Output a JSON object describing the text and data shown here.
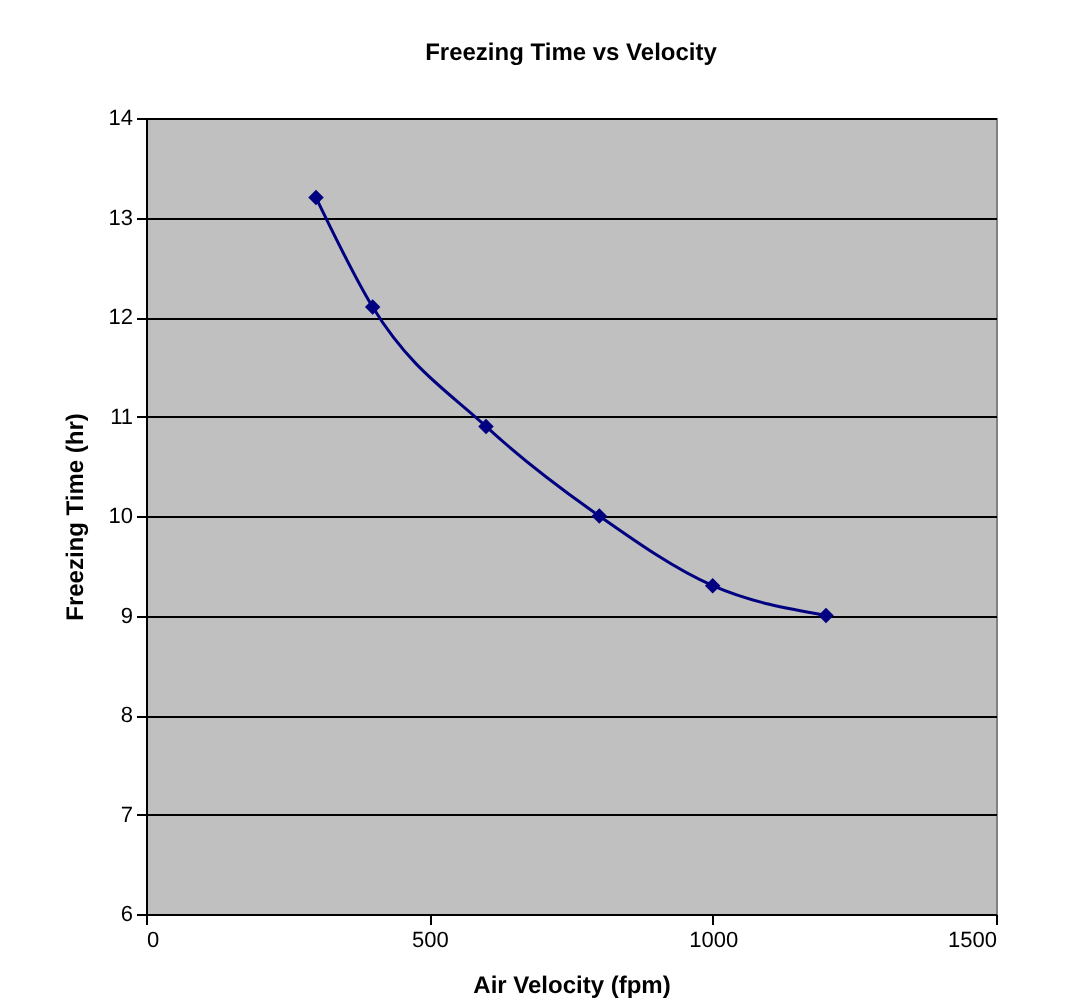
{
  "chart_data": {
    "type": "line",
    "title": "Freezing Time vs Velocity",
    "xlabel": "Air Velocity (fpm)",
    "ylabel": "Freezing Time (hr)",
    "x": [
      300,
      400,
      600,
      800,
      1000,
      1200
    ],
    "series": [
      {
        "color": "#000080",
        "values": [
          13.2,
          12.1,
          10.9,
          10.0,
          9.3,
          9.0
        ]
      }
    ],
    "xlim": [
      0,
      1500
    ],
    "xticks": [
      0,
      500,
      1000,
      1500
    ],
    "ylim": [
      6,
      14
    ],
    "yticks": [
      6,
      7,
      8,
      9,
      10,
      11,
      12,
      13,
      14
    ],
    "grid": "y",
    "marker": "diamond",
    "line_style": "solid"
  }
}
